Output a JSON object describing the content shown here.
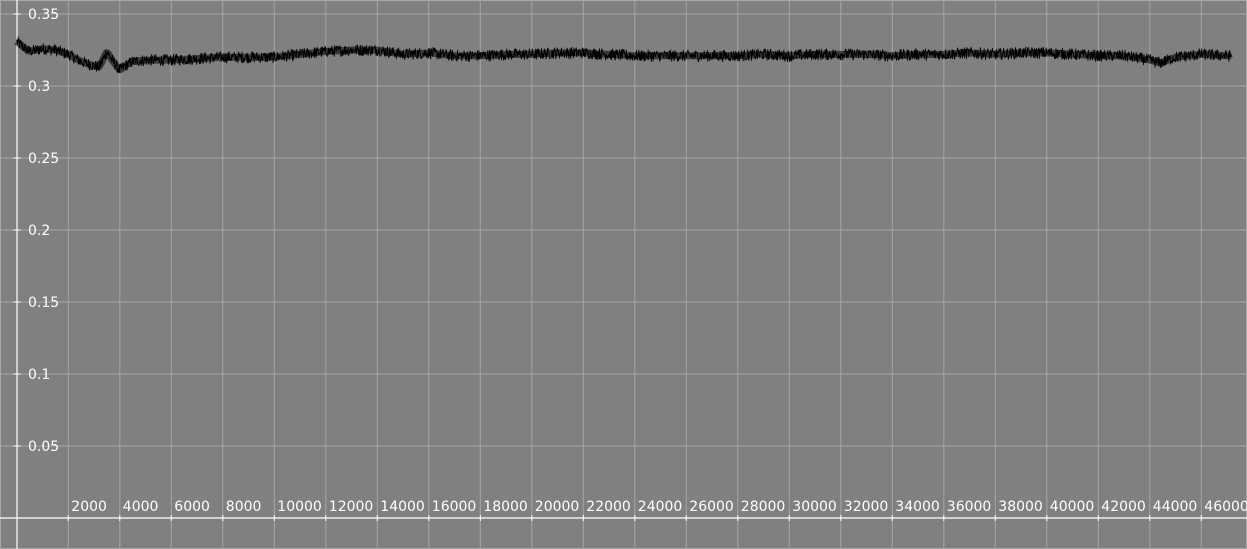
{
  "chart_data": {
    "type": "line",
    "title": "",
    "xlabel": "",
    "ylabel": "",
    "xlim": [
      0,
      47200
    ],
    "ylim": [
      0,
      0.35
    ],
    "grid": true,
    "x_ticks": [
      2000,
      4000,
      6000,
      8000,
      10000,
      12000,
      14000,
      16000,
      18000,
      20000,
      22000,
      24000,
      26000,
      28000,
      30000,
      32000,
      34000,
      36000,
      38000,
      40000,
      42000,
      44000,
      46000
    ],
    "x_tick_labels": [
      "2000",
      "4000",
      "6000",
      "8000",
      "10000",
      "12000",
      "14000",
      "16000",
      "18000",
      "20000",
      "22000",
      "24000",
      "26000",
      "28000",
      "30000",
      "32000",
      "34000",
      "36000",
      "38000",
      "40000",
      "42000",
      "44000",
      "46000"
    ],
    "y_ticks": [
      0.05,
      0.1,
      0.15,
      0.2,
      0.25,
      0.3,
      0.35
    ],
    "y_tick_labels": [
      "0.05",
      "0.1",
      "0.15",
      "0.2",
      "0.25",
      "0.3",
      "0.35"
    ],
    "series": [
      {
        "color": "#000000",
        "noise_amplitude": 0.004,
        "x": [
          0,
          250,
          500,
          1000,
          1500,
          2000,
          2500,
          3000,
          3200,
          3500,
          3700,
          4000,
          4200,
          4500,
          5000,
          6000,
          7000,
          8000,
          9000,
          10000,
          11000,
          12000,
          13000,
          14000,
          15000,
          16000,
          17000,
          18000,
          19000,
          20000,
          21000,
          22000,
          23000,
          24000,
          25000,
          26000,
          27000,
          28000,
          29000,
          30000,
          31000,
          32000,
          33000,
          34000,
          35000,
          36000,
          37000,
          38000,
          39000,
          40000,
          41000,
          42000,
          43000,
          44000,
          44400,
          45000,
          46000,
          47000
        ],
        "y": [
          0.331,
          0.327,
          0.324,
          0.326,
          0.325,
          0.322,
          0.317,
          0.314,
          0.313,
          0.324,
          0.318,
          0.311,
          0.314,
          0.317,
          0.318,
          0.318,
          0.319,
          0.32,
          0.32,
          0.32,
          0.322,
          0.324,
          0.325,
          0.325,
          0.322,
          0.323,
          0.321,
          0.321,
          0.322,
          0.322,
          0.323,
          0.323,
          0.322,
          0.321,
          0.321,
          0.321,
          0.321,
          0.321,
          0.322,
          0.321,
          0.322,
          0.322,
          0.322,
          0.321,
          0.322,
          0.322,
          0.323,
          0.322,
          0.323,
          0.323,
          0.322,
          0.321,
          0.321,
          0.318,
          0.316,
          0.32,
          0.322,
          0.321
        ]
      }
    ]
  }
}
